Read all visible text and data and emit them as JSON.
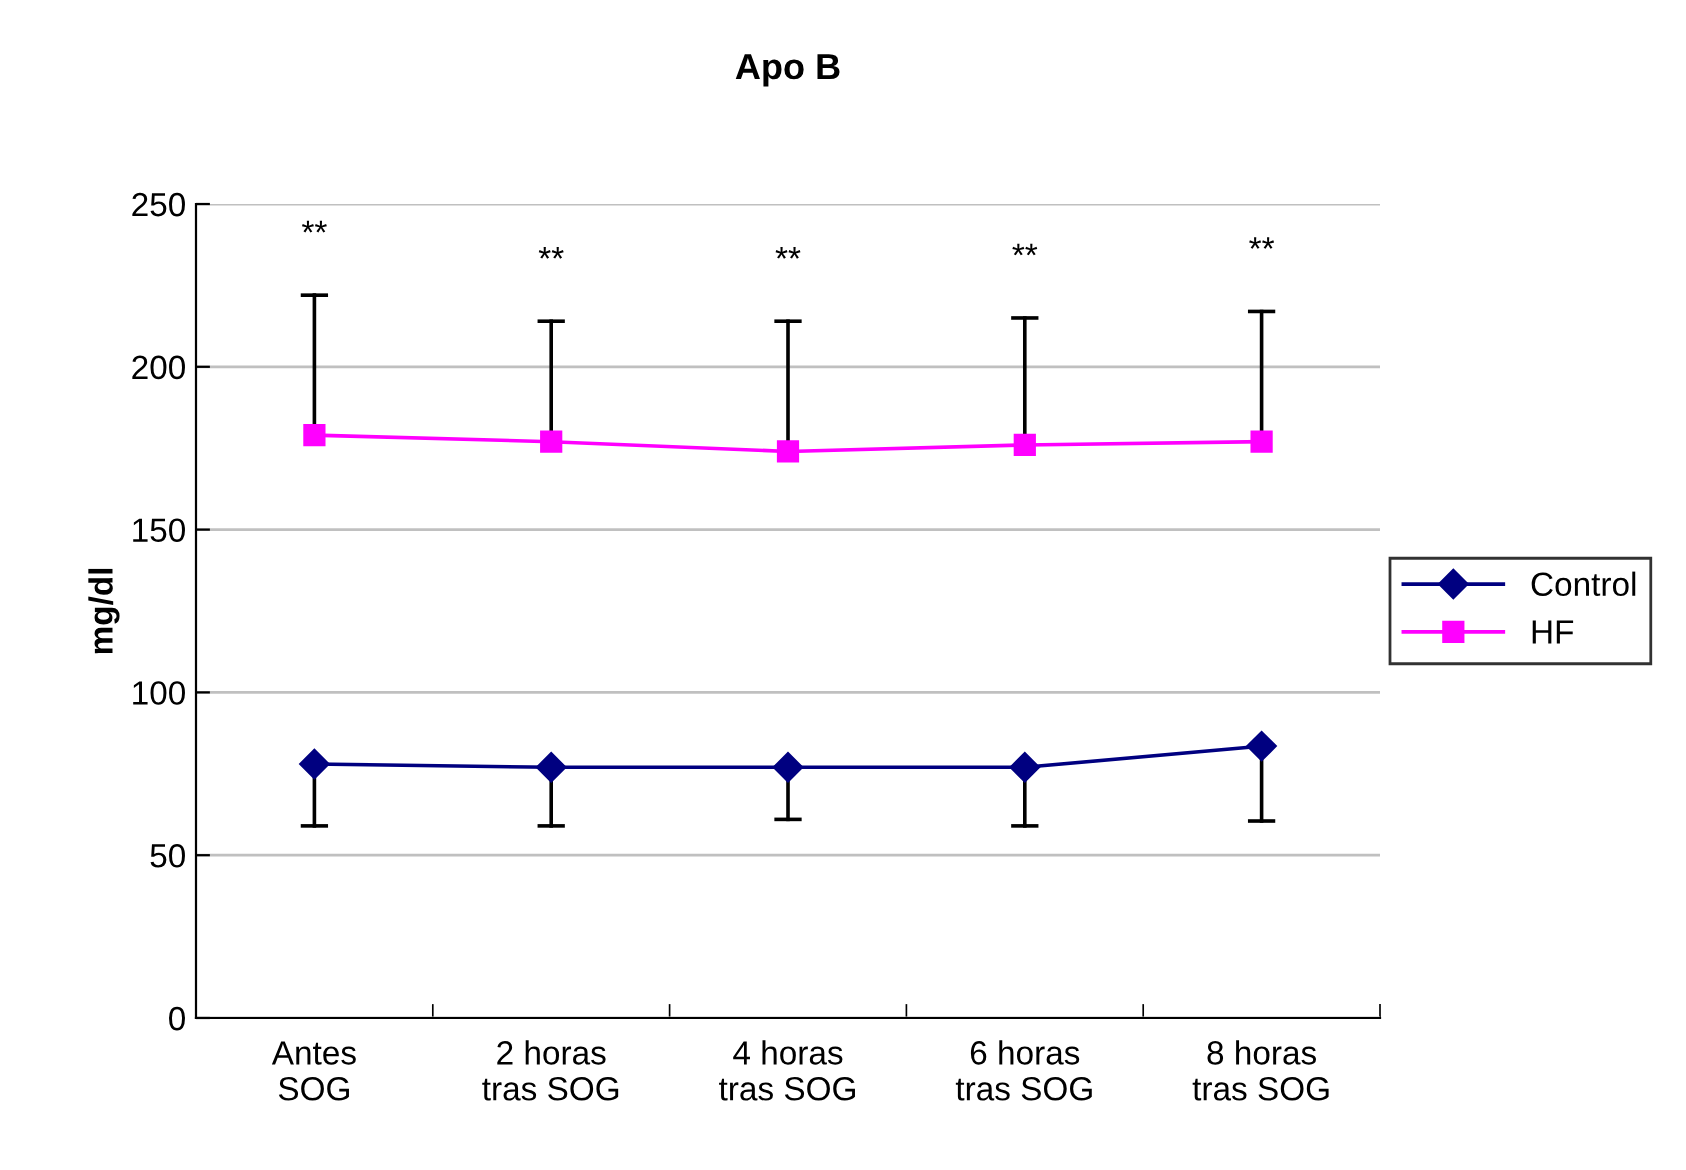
{
  "chart_data": {
    "type": "line",
    "title": "Apo B",
    "ylabel": "mg/dl",
    "categories": [
      "Antes\nSOG",
      "2 horas\ntras SOG",
      "4 horas\ntras SOG",
      "6 horas\ntras SOG",
      "8 horas\ntras SOG"
    ],
    "series": [
      {
        "name": "Control",
        "color": "#000080",
        "marker": "diamond",
        "values": [
          78,
          77,
          77,
          77,
          83.5
        ],
        "errors": [
          [
            59,
            78
          ],
          [
            59,
            77
          ],
          [
            61,
            77
          ],
          [
            59,
            77
          ],
          [
            60.5,
            83.5
          ]
        ]
      },
      {
        "name": "HF",
        "color": "#ff00ff",
        "marker": "square",
        "values": [
          179,
          177,
          174,
          176,
          177
        ],
        "errors": [
          [
            179,
            222
          ],
          [
            177,
            214
          ],
          [
            174,
            214
          ],
          [
            176,
            215
          ],
          [
            177,
            217
          ]
        ]
      }
    ],
    "annotations": [
      "**",
      "**",
      "**",
      "**",
      "**"
    ],
    "ylim": [
      0,
      250
    ],
    "yticks": [
      0,
      50,
      100,
      150,
      200,
      250
    ],
    "grid": "y",
    "legend": "right"
  }
}
